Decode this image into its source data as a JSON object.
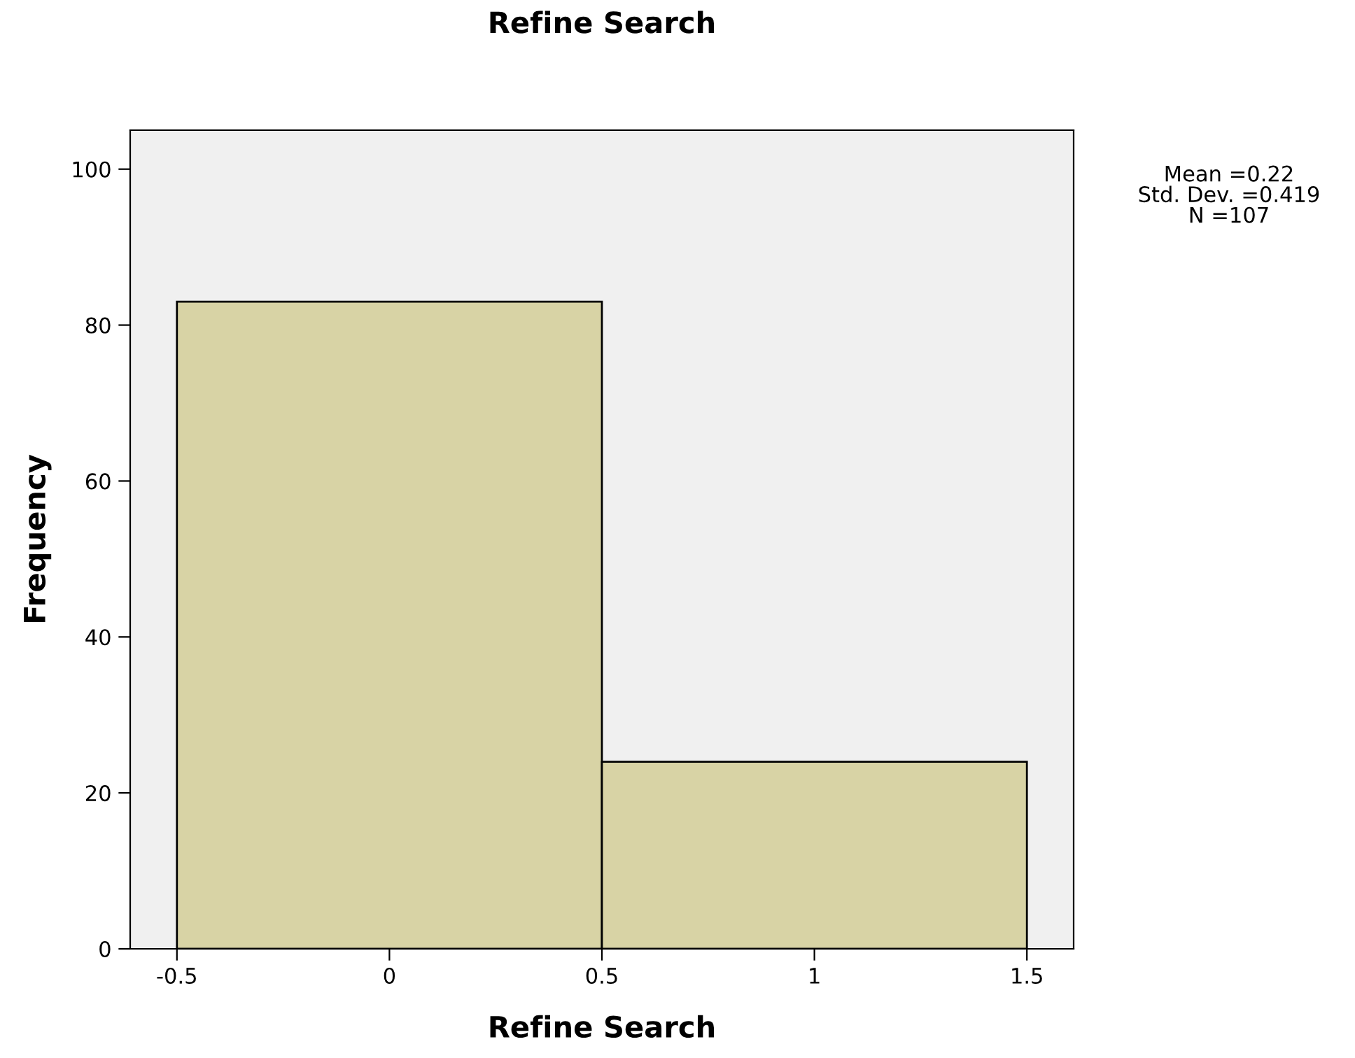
{
  "chart_data": {
    "type": "histogram",
    "title": "Refine Search",
    "xlabel": "Refine Search",
    "ylabel": "Frequency",
    "bins": [
      -0.5,
      0.5,
      1.5
    ],
    "values": [
      83,
      24
    ],
    "color": "#d8d3a5",
    "xlim": [
      -0.61,
      1.61
    ],
    "xticks": [
      -0.5,
      0,
      0.5,
      1,
      1.5
    ],
    "ylim": [
      0,
      105
    ],
    "yticks": [
      0,
      20,
      40,
      60,
      80,
      100
    ],
    "annotations": [
      "Mean =0.22\nStd. Dev. =0.419\nN =107"
    ],
    "grid": false,
    "legend": false
  }
}
